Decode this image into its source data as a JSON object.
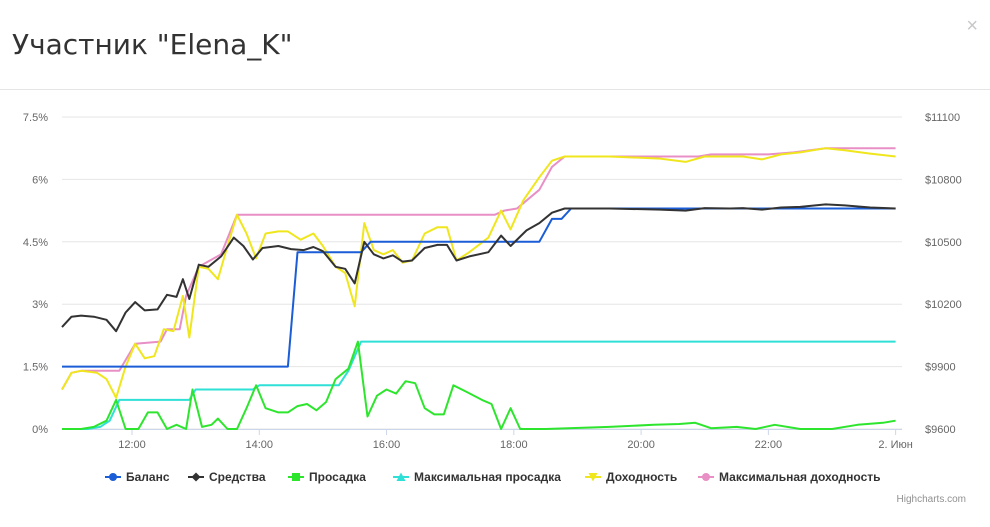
{
  "header": {
    "title": "Участник \"Elena_K\"",
    "close_label": "×"
  },
  "credits": "Highcharts.com",
  "colors": {
    "balance": "#1a5dd6",
    "equity": "#333333",
    "drawdown": "#2ee52e",
    "max_drawdown": "#2ee0d6",
    "profit": "#f0e61e",
    "max_profit": "#e88fc5",
    "grid": "#e6e6e6",
    "axis_text": "#666666"
  },
  "chart_data": {
    "type": "line",
    "x_ticks": [
      "12:00",
      "14:00",
      "16:00",
      "18:00",
      "20:00",
      "22:00",
      "2. Июн"
    ],
    "x_tick_hours": [
      12,
      14,
      16,
      18,
      20,
      22,
      24
    ],
    "xlim": [
      10.9,
      24.1
    ],
    "y_left": {
      "ticks": [
        "0%",
        "1.5%",
        "3%",
        "4.5%",
        "6%",
        "7.5%"
      ],
      "values": [
        0,
        1.5,
        3,
        4.5,
        6,
        7.5
      ],
      "ylim": [
        0,
        7.5
      ]
    },
    "y_right": {
      "ticks": [
        "$9600",
        "$9900",
        "$10200",
        "$10500",
        "$10800",
        "$11100"
      ],
      "values": [
        9600,
        9900,
        10200,
        10500,
        10800,
        11100
      ],
      "ylim": [
        9600,
        11100
      ]
    },
    "legend_position": "bottom-center",
    "series": [
      {
        "key": "balance",
        "name": "Баланс",
        "marker": "circle",
        "axis": "right",
        "points": [
          [
            10.9,
            9900
          ],
          [
            14.45,
            9900
          ],
          [
            14.6,
            10450
          ],
          [
            15.6,
            10450
          ],
          [
            15.75,
            10500
          ],
          [
            18.4,
            10500
          ],
          [
            18.6,
            10610
          ],
          [
            18.75,
            10610
          ],
          [
            18.9,
            10660
          ],
          [
            24.0,
            10660
          ]
        ]
      },
      {
        "key": "equity",
        "name": "Средства",
        "marker": "diamond",
        "axis": "right",
        "points": [
          [
            10.9,
            10090
          ],
          [
            11.05,
            10140
          ],
          [
            11.2,
            10145
          ],
          [
            11.4,
            10140
          ],
          [
            11.6,
            10125
          ],
          [
            11.75,
            10070
          ],
          [
            11.9,
            10160
          ],
          [
            12.05,
            10210
          ],
          [
            12.2,
            10170
          ],
          [
            12.4,
            10175
          ],
          [
            12.55,
            10245
          ],
          [
            12.7,
            10235
          ],
          [
            12.8,
            10320
          ],
          [
            12.9,
            10225
          ],
          [
            13.05,
            10390
          ],
          [
            13.2,
            10380
          ],
          [
            13.4,
            10430
          ],
          [
            13.6,
            10520
          ],
          [
            13.75,
            10480
          ],
          [
            13.9,
            10415
          ],
          [
            14.05,
            10470
          ],
          [
            14.3,
            10480
          ],
          [
            14.5,
            10465
          ],
          [
            14.7,
            10460
          ],
          [
            14.85,
            10475
          ],
          [
            15.0,
            10455
          ],
          [
            15.2,
            10380
          ],
          [
            15.35,
            10370
          ],
          [
            15.5,
            10300
          ],
          [
            15.65,
            10500
          ],
          [
            15.8,
            10440
          ],
          [
            15.95,
            10420
          ],
          [
            16.1,
            10435
          ],
          [
            16.25,
            10405
          ],
          [
            16.4,
            10410
          ],
          [
            16.6,
            10470
          ],
          [
            16.8,
            10485
          ],
          [
            16.95,
            10485
          ],
          [
            17.1,
            10410
          ],
          [
            17.3,
            10430
          ],
          [
            17.6,
            10450
          ],
          [
            17.8,
            10530
          ],
          [
            17.95,
            10480
          ],
          [
            18.2,
            10555
          ],
          [
            18.4,
            10590
          ],
          [
            18.6,
            10640
          ],
          [
            18.8,
            10660
          ],
          [
            19.5,
            10660
          ],
          [
            20.3,
            10655
          ],
          [
            20.7,
            10650
          ],
          [
            21.0,
            10662
          ],
          [
            21.4,
            10660
          ],
          [
            21.6,
            10662
          ],
          [
            21.9,
            10655
          ],
          [
            22.2,
            10665
          ],
          [
            22.5,
            10668
          ],
          [
            22.9,
            10680
          ],
          [
            23.2,
            10675
          ],
          [
            23.6,
            10665
          ],
          [
            24.0,
            10660
          ]
        ]
      },
      {
        "key": "drawdown",
        "name": "Просадка",
        "marker": "square",
        "axis": "left",
        "points": [
          [
            10.9,
            0.0
          ],
          [
            11.2,
            0.0
          ],
          [
            11.4,
            0.05
          ],
          [
            11.6,
            0.2
          ],
          [
            11.75,
            0.7
          ],
          [
            11.9,
            0.0
          ],
          [
            12.1,
            0.0
          ],
          [
            12.25,
            0.4
          ],
          [
            12.4,
            0.4
          ],
          [
            12.55,
            0.0
          ],
          [
            12.7,
            0.1
          ],
          [
            12.85,
            0.0
          ],
          [
            12.95,
            0.95
          ],
          [
            13.1,
            0.05
          ],
          [
            13.25,
            0.1
          ],
          [
            13.35,
            0.25
          ],
          [
            13.5,
            0.0
          ],
          [
            13.65,
            0.0
          ],
          [
            13.8,
            0.5
          ],
          [
            13.95,
            1.05
          ],
          [
            14.1,
            0.5
          ],
          [
            14.3,
            0.4
          ],
          [
            14.45,
            0.4
          ],
          [
            14.6,
            0.55
          ],
          [
            14.75,
            0.6
          ],
          [
            14.9,
            0.45
          ],
          [
            15.05,
            0.65
          ],
          [
            15.2,
            1.2
          ],
          [
            15.4,
            1.45
          ],
          [
            15.55,
            2.1
          ],
          [
            15.7,
            0.3
          ],
          [
            15.85,
            0.8
          ],
          [
            16.0,
            0.95
          ],
          [
            16.15,
            0.85
          ],
          [
            16.3,
            1.15
          ],
          [
            16.45,
            1.1
          ],
          [
            16.6,
            0.5
          ],
          [
            16.75,
            0.35
          ],
          [
            16.9,
            0.35
          ],
          [
            17.05,
            1.05
          ],
          [
            17.25,
            0.9
          ],
          [
            17.5,
            0.7
          ],
          [
            17.65,
            0.6
          ],
          [
            17.8,
            0.0
          ],
          [
            17.95,
            0.5
          ],
          [
            18.1,
            0.0
          ],
          [
            18.5,
            0.0
          ],
          [
            19.5,
            0.05
          ],
          [
            20.2,
            0.1
          ],
          [
            20.6,
            0.12
          ],
          [
            20.85,
            0.15
          ],
          [
            21.1,
            0.02
          ],
          [
            21.5,
            0.05
          ],
          [
            21.8,
            0.0
          ],
          [
            22.1,
            0.1
          ],
          [
            22.5,
            0.0
          ],
          [
            23.0,
            0.0
          ],
          [
            23.4,
            0.1
          ],
          [
            23.8,
            0.15
          ],
          [
            24.0,
            0.2
          ]
        ]
      },
      {
        "key": "max_drawdown",
        "name": "Максимальная просадка",
        "marker": "triangle",
        "axis": "left",
        "points": [
          [
            10.9,
            0.0
          ],
          [
            11.3,
            0.0
          ],
          [
            11.5,
            0.05
          ],
          [
            11.65,
            0.2
          ],
          [
            11.8,
            0.7
          ],
          [
            12.9,
            0.7
          ],
          [
            13.0,
            0.95
          ],
          [
            13.9,
            0.95
          ],
          [
            14.0,
            1.05
          ],
          [
            15.25,
            1.05
          ],
          [
            15.4,
            1.4
          ],
          [
            15.6,
            2.1
          ],
          [
            24.0,
            2.1
          ]
        ]
      },
      {
        "key": "profit",
        "name": "Доходность",
        "marker": "triangle-down",
        "axis": "left",
        "points": [
          [
            10.9,
            0.95
          ],
          [
            11.05,
            1.35
          ],
          [
            11.2,
            1.4
          ],
          [
            11.45,
            1.35
          ],
          [
            11.6,
            1.2
          ],
          [
            11.75,
            0.75
          ],
          [
            11.9,
            1.5
          ],
          [
            12.05,
            2.05
          ],
          [
            12.2,
            1.7
          ],
          [
            12.35,
            1.75
          ],
          [
            12.5,
            2.4
          ],
          [
            12.65,
            2.35
          ],
          [
            12.8,
            3.2
          ],
          [
            12.9,
            2.2
          ],
          [
            13.05,
            3.9
          ],
          [
            13.2,
            3.85
          ],
          [
            13.35,
            3.6
          ],
          [
            13.5,
            4.4
          ],
          [
            13.65,
            5.15
          ],
          [
            13.8,
            4.7
          ],
          [
            13.95,
            4.1
          ],
          [
            14.1,
            4.7
          ],
          [
            14.3,
            4.75
          ],
          [
            14.45,
            4.75
          ],
          [
            14.65,
            4.55
          ],
          [
            14.85,
            4.7
          ],
          [
            15.0,
            4.4
          ],
          [
            15.2,
            3.9
          ],
          [
            15.35,
            3.75
          ],
          [
            15.5,
            2.95
          ],
          [
            15.65,
            4.95
          ],
          [
            15.8,
            4.3
          ],
          [
            15.95,
            4.2
          ],
          [
            16.1,
            4.3
          ],
          [
            16.25,
            4.0
          ],
          [
            16.4,
            4.05
          ],
          [
            16.6,
            4.7
          ],
          [
            16.8,
            4.85
          ],
          [
            16.95,
            4.85
          ],
          [
            17.1,
            4.05
          ],
          [
            17.3,
            4.25
          ],
          [
            17.6,
            4.6
          ],
          [
            17.8,
            5.25
          ],
          [
            17.95,
            4.8
          ],
          [
            18.15,
            5.5
          ],
          [
            18.4,
            6.05
          ],
          [
            18.6,
            6.45
          ],
          [
            18.8,
            6.55
          ],
          [
            19.5,
            6.55
          ],
          [
            20.3,
            6.5
          ],
          [
            20.7,
            6.42
          ],
          [
            21.0,
            6.55
          ],
          [
            21.4,
            6.55
          ],
          [
            21.6,
            6.55
          ],
          [
            21.9,
            6.48
          ],
          [
            22.2,
            6.6
          ],
          [
            22.5,
            6.65
          ],
          [
            22.9,
            6.75
          ],
          [
            23.2,
            6.7
          ],
          [
            23.6,
            6.62
          ],
          [
            24.0,
            6.55
          ]
        ]
      },
      {
        "key": "max_profit",
        "name": "Максимальная доходность",
        "marker": "circle",
        "axis": "left",
        "points": [
          [
            10.9,
            0.95
          ],
          [
            11.05,
            1.35
          ],
          [
            11.2,
            1.4
          ],
          [
            11.8,
            1.4
          ],
          [
            12.05,
            2.05
          ],
          [
            12.45,
            2.1
          ],
          [
            12.55,
            2.4
          ],
          [
            12.75,
            2.4
          ],
          [
            12.85,
            3.2
          ],
          [
            13.05,
            3.9
          ],
          [
            13.4,
            4.2
          ],
          [
            13.65,
            5.15
          ],
          [
            17.7,
            5.15
          ],
          [
            17.85,
            5.25
          ],
          [
            18.05,
            5.3
          ],
          [
            18.4,
            5.75
          ],
          [
            18.6,
            6.3
          ],
          [
            18.8,
            6.55
          ],
          [
            20.9,
            6.55
          ],
          [
            21.1,
            6.6
          ],
          [
            22.0,
            6.6
          ],
          [
            22.4,
            6.65
          ],
          [
            22.9,
            6.75
          ],
          [
            24.0,
            6.75
          ]
        ]
      }
    ]
  }
}
